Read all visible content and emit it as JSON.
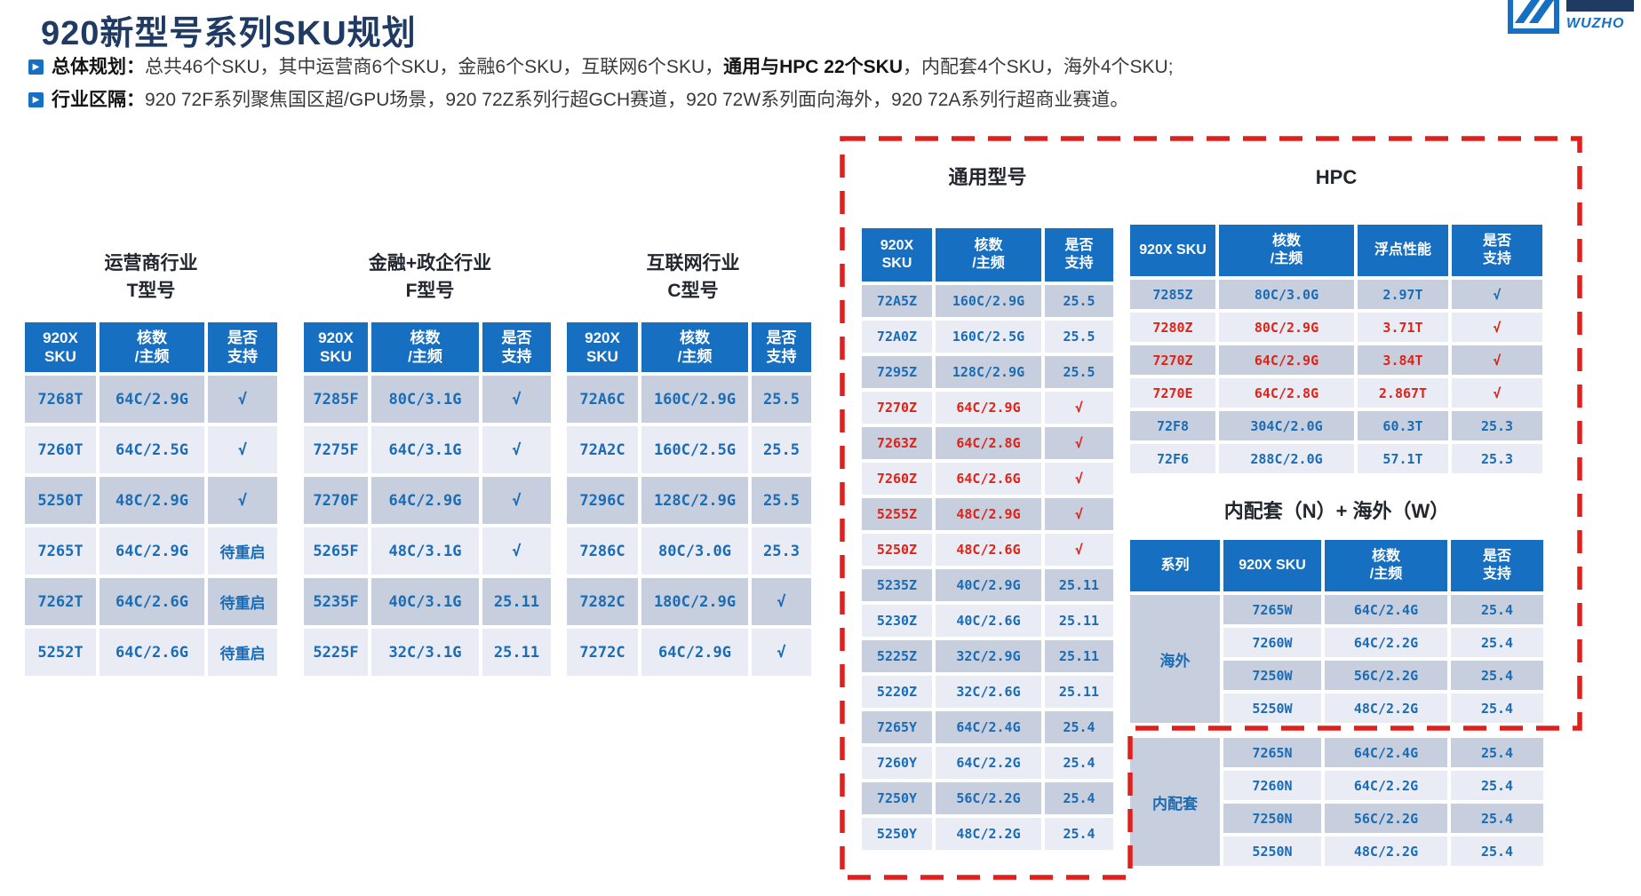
{
  "colors": {
    "header_blue": "#176fc1",
    "cell_blue": "#1a6cb5",
    "accent_red": "#e02317",
    "dash_red": "#e0201d",
    "row_dark": "#c7cede",
    "row_light": "#e9ebf5",
    "title_navy": "#1f3a63"
  },
  "page": {
    "title": "920新型号系列SKU规划",
    "logo_text": "WUZHO",
    "bullets": [
      {
        "label": "总体规划：",
        "pre": "总共46个SKU，其中运营商6个SKU，金融6个SKU，互联网6个SKU，",
        "strong": "通用与HPC 22个SKU",
        "post": "，内配套4个SKU，海外4个SKU;"
      },
      {
        "label": "行业区隔：",
        "pre": "920 72F系列聚焦国区超/GPU场景，920 72Z系列行超GCH赛道，920 72W系列面向海外，920 72A系列行超商业赛道。",
        "strong": "",
        "post": ""
      }
    ]
  },
  "tables": {
    "carrier": {
      "title": "运营商行业\nT型号",
      "headers": [
        "920X\nSKU",
        "核数\n/主频",
        "是否\n支持"
      ],
      "rows": [
        {
          "cells": [
            "7268T",
            "64C/2.9G",
            "√"
          ],
          "red": false
        },
        {
          "cells": [
            "7260T",
            "64C/2.5G",
            "√"
          ],
          "red": false
        },
        {
          "cells": [
            "5250T",
            "48C/2.9G",
            "√"
          ],
          "red": false
        },
        {
          "cells": [
            "7265T",
            "64C/2.9G",
            "待重启"
          ],
          "red": false
        },
        {
          "cells": [
            "7262T",
            "64C/2.6G",
            "待重启"
          ],
          "red": false
        },
        {
          "cells": [
            "5252T",
            "64C/2.6G",
            "待重启"
          ],
          "red": false
        }
      ]
    },
    "finance": {
      "title": "金融+政企行业\nF型号",
      "headers": [
        "920X\nSKU",
        "核数\n/主频",
        "是否\n支持"
      ],
      "rows": [
        {
          "cells": [
            "7285F",
            "80C/3.1G",
            "√"
          ],
          "red": false
        },
        {
          "cells": [
            "7275F",
            "64C/3.1G",
            "√"
          ],
          "red": false
        },
        {
          "cells": [
            "7270F",
            "64C/2.9G",
            "√"
          ],
          "red": false
        },
        {
          "cells": [
            "5265F",
            "48C/3.1G",
            "√"
          ],
          "red": false
        },
        {
          "cells": [
            "5235F",
            "40C/3.1G",
            "25.11"
          ],
          "red": false
        },
        {
          "cells": [
            "5225F",
            "32C/3.1G",
            "25.11"
          ],
          "red": false
        }
      ]
    },
    "internet": {
      "title": "互联网行业\nC型号",
      "headers": [
        "920X\nSKU",
        "核数\n/主频",
        "是否\n支持"
      ],
      "rows": [
        {
          "cells": [
            "72A6C",
            "160C/2.9G",
            "25.5"
          ],
          "red": false
        },
        {
          "cells": [
            "72A2C",
            "160C/2.5G",
            "25.5"
          ],
          "red": false
        },
        {
          "cells": [
            "7296C",
            "128C/2.9G",
            "25.5"
          ],
          "red": false
        },
        {
          "cells": [
            "7286C",
            "80C/3.0G",
            "25.3"
          ],
          "red": false
        },
        {
          "cells": [
            "7282C",
            "180C/2.9G",
            "√"
          ],
          "red": false
        },
        {
          "cells": [
            "7272C",
            "64C/2.9G",
            "√"
          ],
          "red": false
        }
      ]
    },
    "general": {
      "title": "通用型号",
      "headers": [
        "920X\nSKU",
        "核数\n/主频",
        "是否\n支持"
      ],
      "rows": [
        {
          "cells": [
            "72A5Z",
            "160C/2.9G",
            "25.5"
          ],
          "red": false
        },
        {
          "cells": [
            "72A0Z",
            "160C/2.5G",
            "25.5"
          ],
          "red": false
        },
        {
          "cells": [
            "7295Z",
            "128C/2.9G",
            "25.5"
          ],
          "red": false
        },
        {
          "cells": [
            "7270Z",
            "64C/2.9G",
            "√"
          ],
          "red": true
        },
        {
          "cells": [
            "7263Z",
            "64C/2.8G",
            "√"
          ],
          "red": true
        },
        {
          "cells": [
            "7260Z",
            "64C/2.6G",
            "√"
          ],
          "red": true
        },
        {
          "cells": [
            "5255Z",
            "48C/2.9G",
            "√"
          ],
          "red": true
        },
        {
          "cells": [
            "5250Z",
            "48C/2.6G",
            "√"
          ],
          "red": true
        },
        {
          "cells": [
            "5235Z",
            "40C/2.9G",
            "25.11"
          ],
          "red": false
        },
        {
          "cells": [
            "5230Z",
            "40C/2.6G",
            "25.11"
          ],
          "red": false
        },
        {
          "cells": [
            "5225Z",
            "32C/2.9G",
            "25.11"
          ],
          "red": false
        },
        {
          "cells": [
            "5220Z",
            "32C/2.6G",
            "25.11"
          ],
          "red": false
        },
        {
          "cells": [
            "7265Y",
            "64C/2.4G",
            "25.4"
          ],
          "red": false
        },
        {
          "cells": [
            "7260Y",
            "64C/2.2G",
            "25.4"
          ],
          "red": false
        },
        {
          "cells": [
            "7250Y",
            "56C/2.2G",
            "25.4"
          ],
          "red": false
        },
        {
          "cells": [
            "5250Y",
            "48C/2.2G",
            "25.4"
          ],
          "red": false
        }
      ]
    },
    "hpc": {
      "title": "HPC",
      "headers": [
        "920X SKU",
        "核数\n/主频",
        "浮点性能",
        "是否\n支持"
      ],
      "rows": [
        {
          "cells": [
            "7285Z",
            "80C/3.0G",
            "2.97T",
            "√"
          ],
          "red": false
        },
        {
          "cells": [
            "7280Z",
            "80C/2.9G",
            "3.71T",
            "√"
          ],
          "red": true
        },
        {
          "cells": [
            "7270Z",
            "64C/2.9G",
            "3.84T",
            "√"
          ],
          "red": true
        },
        {
          "cells": [
            "7270E",
            "64C/2.8G",
            "2.867T",
            "√"
          ],
          "red": true
        },
        {
          "cells": [
            "72F8",
            "304C/2.0G",
            "60.3T",
            "25.3"
          ],
          "red": false
        },
        {
          "cells": [
            "72F6",
            "288C/2.0G",
            "57.1T",
            "25.3"
          ],
          "red": false
        }
      ]
    },
    "nw": {
      "title": "内配套（N）+ 海外（W）",
      "headers": [
        "系列",
        "920X SKU",
        "核数\n/主频",
        "是否\n支持"
      ],
      "groups": [
        {
          "name": "海外",
          "rows": [
            [
              "7265W",
              "64C/2.4G",
              "25.4"
            ],
            [
              "7260W",
              "64C/2.2G",
              "25.4"
            ],
            [
              "7250W",
              "56C/2.2G",
              "25.4"
            ],
            [
              "5250W",
              "48C/2.2G",
              "25.4"
            ]
          ]
        },
        {
          "name": "内配套",
          "rows": [
            [
              "7265N",
              "64C/2.4G",
              "25.4"
            ],
            [
              "7260N",
              "64C/2.2G",
              "25.4"
            ],
            [
              "7250N",
              "56C/2.2G",
              "25.4"
            ],
            [
              "5250N",
              "48C/2.2G",
              "25.4"
            ]
          ]
        }
      ]
    }
  }
}
